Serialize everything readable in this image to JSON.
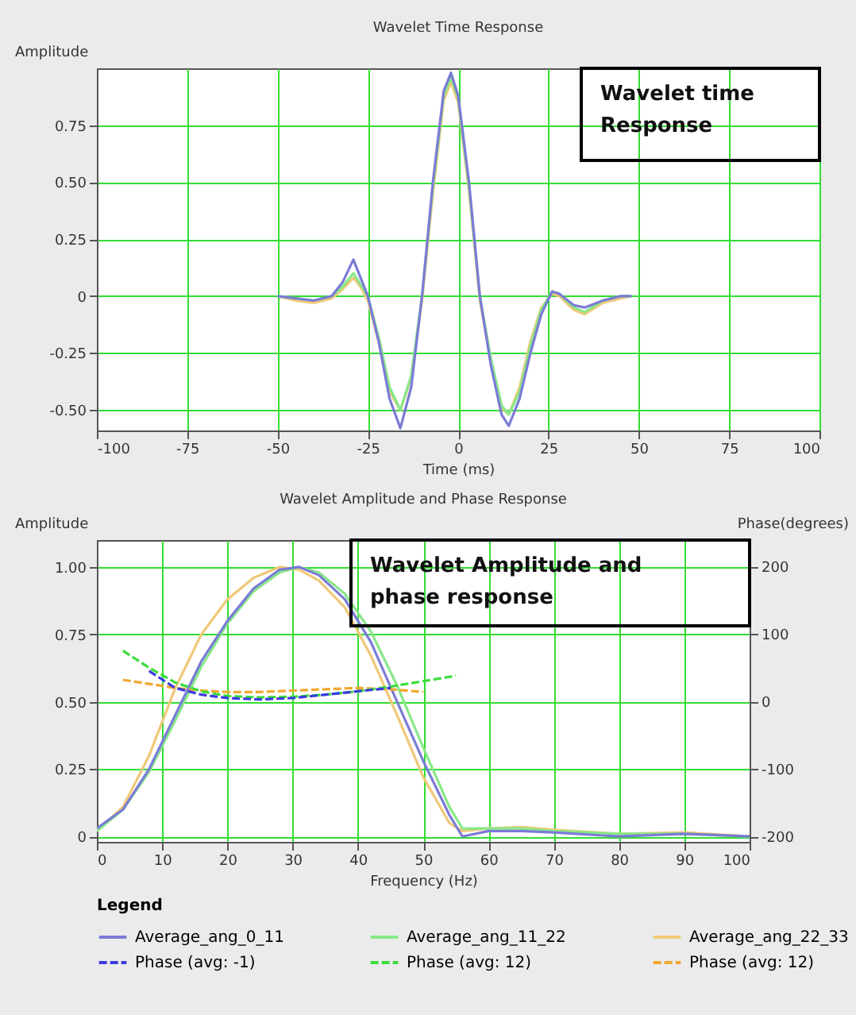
{
  "chart_data": [
    {
      "type": "line",
      "title": "Wavelet Time Response",
      "xlabel": "Time (ms)",
      "ylabel": "Amplitude",
      "annotations": [
        "Wavelet time Response"
      ],
      "xlim": [
        -100,
        100
      ],
      "xticks": [
        -100,
        -75,
        -50,
        -25,
        0,
        25,
        50,
        75,
        100
      ],
      "ylim": [
        -0.59,
        1.0
      ],
      "yticks": [
        {
          "value": -0.5,
          "label": "-0.50"
        },
        {
          "value": -0.25,
          "label": "-0.25"
        },
        0,
        {
          "value": 0.25,
          "label": "0.25"
        },
        {
          "value": 0.5,
          "label": "0.50"
        },
        {
          "value": 0.75,
          "label": "0.75"
        }
      ],
      "grid": true,
      "line_style": "solid",
      "x": [
        -50,
        -45,
        -40,
        -35,
        -32,
        -29,
        -27,
        -25,
        -22,
        -19,
        -16,
        -13,
        -10,
        -7,
        -4,
        -2,
        0,
        3,
        6,
        9,
        12,
        14,
        17,
        20,
        23,
        26,
        28,
        32,
        35,
        40,
        45,
        48
      ],
      "series": [
        {
          "color": "#7b7bd6",
          "values": [
            0,
            -0.01,
            -0.02,
            0,
            0.06,
            0.16,
            0.08,
            0,
            -0.2,
            -0.45,
            -0.58,
            -0.4,
            0,
            0.5,
            0.9,
            0.98,
            0.88,
            0.5,
            0,
            -0.3,
            -0.52,
            -0.57,
            -0.45,
            -0.25,
            -0.08,
            0.02,
            0.01,
            -0.04,
            -0.05,
            -0.02,
            0,
            0
          ]
        },
        {
          "color": "#88e888",
          "values": [
            0,
            -0.01,
            -0.02,
            0,
            0.04,
            0.1,
            0.05,
            0,
            -0.18,
            -0.4,
            -0.5,
            -0.35,
            0,
            0.48,
            0.88,
            0.96,
            0.87,
            0.48,
            0,
            -0.27,
            -0.48,
            -0.52,
            -0.42,
            -0.22,
            -0.06,
            0.02,
            0.01,
            -0.05,
            -0.07,
            -0.02,
            0,
            0
          ]
        },
        {
          "color": "#f0c878",
          "values": [
            0,
            -0.02,
            -0.03,
            -0.01,
            0.03,
            0.08,
            0.04,
            -0.02,
            -0.2,
            -0.42,
            -0.5,
            -0.36,
            -0.02,
            0.45,
            0.86,
            0.94,
            0.85,
            0.46,
            -0.02,
            -0.28,
            -0.49,
            -0.52,
            -0.4,
            -0.2,
            -0.05,
            0.01,
            0,
            -0.06,
            -0.08,
            -0.03,
            -0.01,
            0
          ]
        }
      ]
    },
    {
      "type": "line",
      "title": "Wavelet Amplitude and Phase Response",
      "xlabel": "Frequency (Hz)",
      "ylabel": "Amplitude",
      "y2label": "Phase(degrees)",
      "legend_title": "Legend",
      "annotations": [
        "Wavelet Amplitude and phase response"
      ],
      "xlim": [
        0,
        100
      ],
      "xticks": [
        0,
        10,
        20,
        30,
        40,
        50,
        60,
        70,
        80,
        90,
        100
      ],
      "ylim": [
        -0.02,
        1.1
      ],
      "yticks": [
        0,
        {
          "value": 0.25,
          "label": "0.25"
        },
        {
          "value": 0.5,
          "label": "0.50"
        },
        {
          "value": 0.75,
          "label": "0.75"
        },
        {
          "value": 1,
          "label": "1.00"
        }
      ],
      "y2lim": [
        -208,
        239
      ],
      "y2ticks": [
        -200,
        -100,
        0,
        100,
        200
      ],
      "grid": true,
      "legend": "bottom",
      "x": [
        0,
        4,
        8,
        12,
        16,
        20,
        24,
        28,
        31,
        34,
        38,
        42,
        46,
        50,
        54,
        56,
        60,
        65,
        70,
        80,
        90,
        100
      ],
      "series": [
        {
          "name": "Average_ang_0_11",
          "color": "#7b7bd6",
          "line_style": "solid",
          "values": [
            0.03,
            0.1,
            0.25,
            0.45,
            0.65,
            0.8,
            0.92,
            0.99,
            1.0,
            0.97,
            0.88,
            0.72,
            0.5,
            0.28,
            0.08,
            0.0,
            0.02,
            0.02,
            0.015,
            0.0,
            0.01,
            0
          ]
        },
        {
          "name": "Average_ang_11_22",
          "color": "#88e888",
          "line_style": "solid",
          "values": [
            0.02,
            0.1,
            0.24,
            0.43,
            0.63,
            0.79,
            0.91,
            0.98,
            1.0,
            0.98,
            0.9,
            0.76,
            0.56,
            0.33,
            0.11,
            0.03,
            0.03,
            0.03,
            0.02,
            0.01,
            0.01,
            0
          ]
        },
        {
          "name": "Average_ang_22_33",
          "color": "#f0c878",
          "line_style": "solid",
          "values": [
            0.02,
            0.11,
            0.3,
            0.55,
            0.75,
            0.88,
            0.96,
            1.0,
            0.99,
            0.95,
            0.85,
            0.67,
            0.45,
            0.22,
            0.05,
            0.02,
            0.03,
            0.035,
            0.025,
            0.01,
            0.015,
            0
          ]
        },
        {
          "name": "Phase (avg: -1)",
          "color": "#3a3ae0",
          "line_style": "dashed",
          "axis": "y2",
          "x": [
            8,
            12,
            16,
            20,
            25,
            30,
            35,
            40,
            45
          ],
          "values": [
            45,
            20,
            10,
            5,
            3,
            5,
            10,
            15,
            20
          ]
        },
        {
          "name": "Phase (avg: 12)",
          "color": "#3cdc3c",
          "line_style": "dashed",
          "axis": "y2",
          "x": [
            4,
            8,
            12,
            16,
            20,
            25,
            30,
            35,
            40,
            45,
            50,
            55
          ],
          "values": [
            75,
            50,
            28,
            15,
            8,
            6,
            7,
            10,
            15,
            22,
            30,
            38
          ]
        },
        {
          "name": "Phase (avg: 12)",
          "color": "#f0a830",
          "line_style": "dashed",
          "axis": "y2",
          "x": [
            4,
            8,
            12,
            16,
            20,
            25,
            30,
            35,
            40,
            45,
            50
          ],
          "values": [
            32,
            26,
            20,
            16,
            14,
            14,
            16,
            18,
            20,
            18,
            14
          ]
        }
      ]
    }
  ]
}
